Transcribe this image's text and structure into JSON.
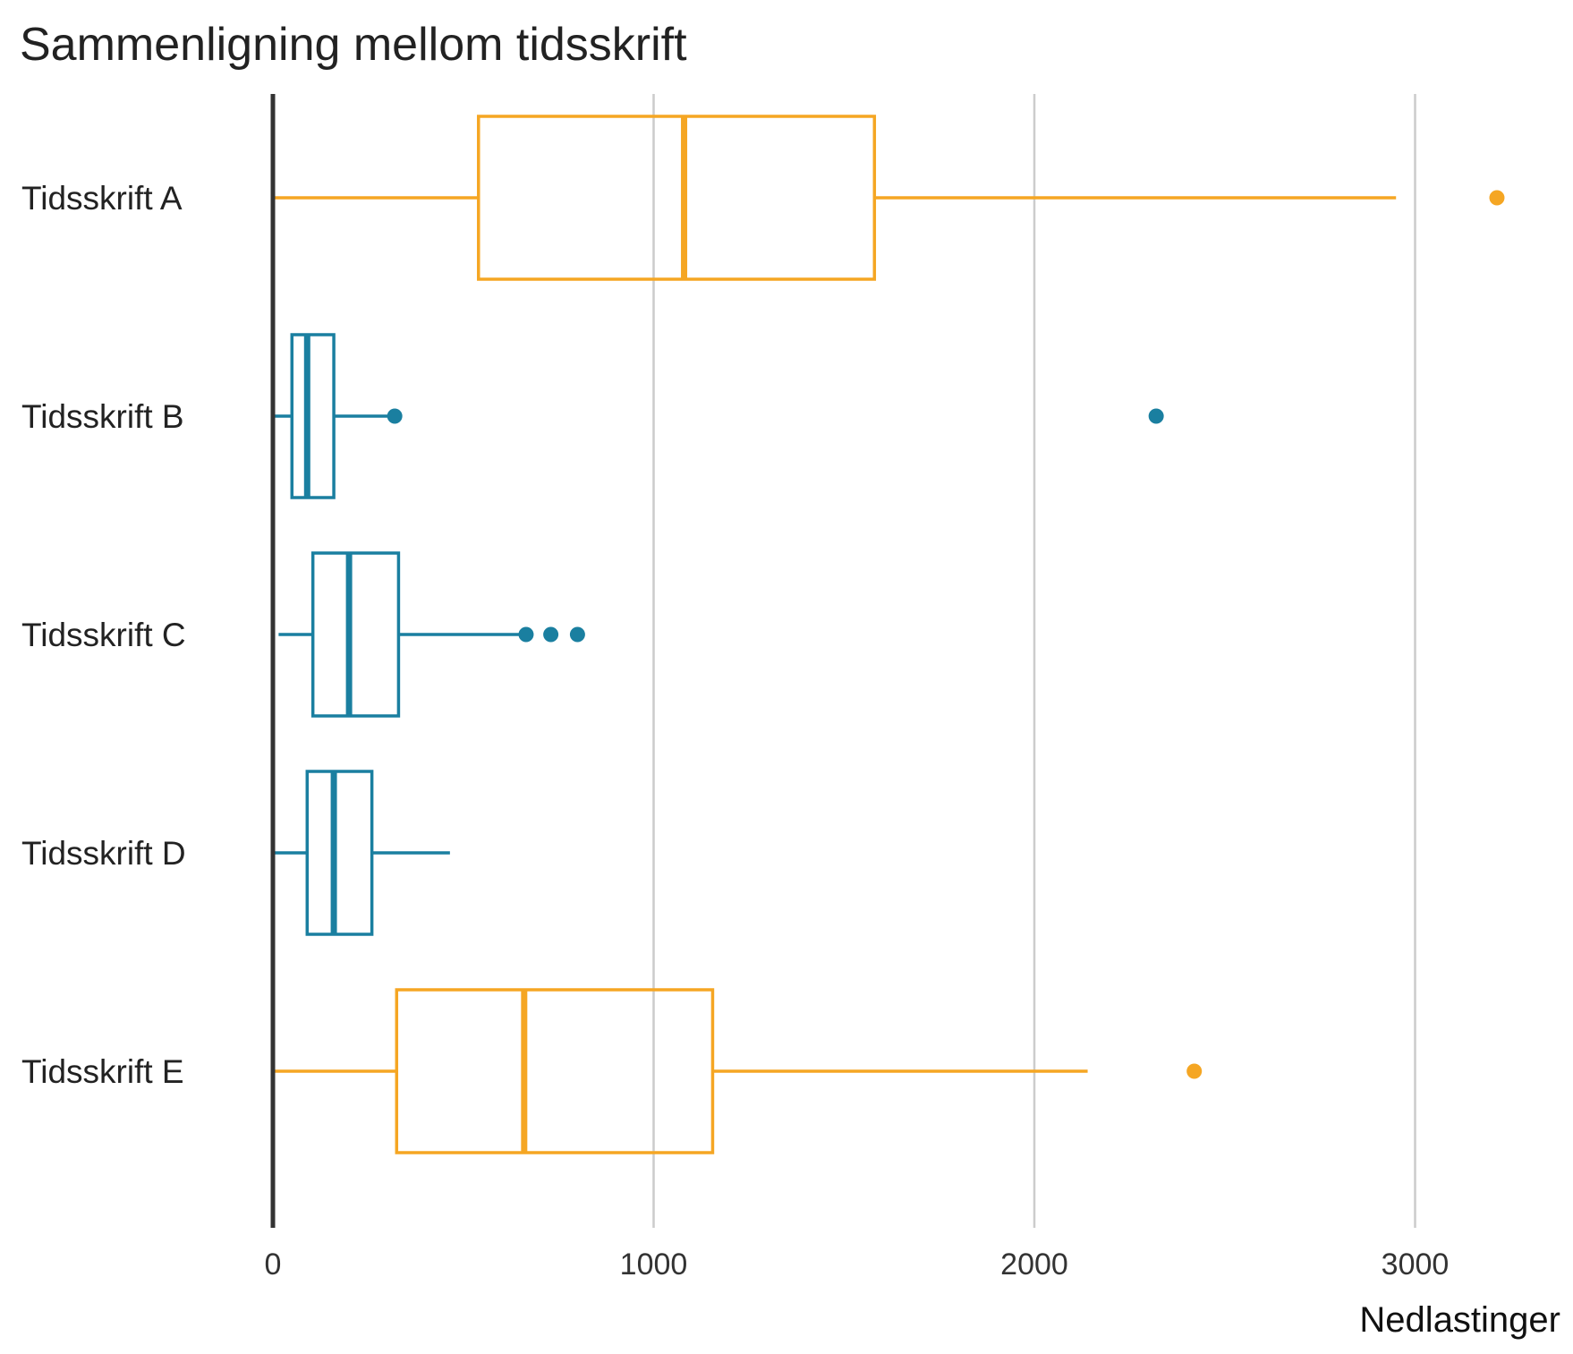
{
  "chart_data": {
    "type": "boxplot",
    "orientation": "horizontal",
    "title": "Sammenligning mellom tidsskrift",
    "xlabel": "Nedlastinger",
    "ylabel": "",
    "xlim": [
      0,
      3400
    ],
    "xticks": [
      0,
      1000,
      2000,
      3000
    ],
    "xtick_labels": [
      "0",
      "1000",
      "2000",
      "3000"
    ],
    "grid": "vertical",
    "colors": {
      "orange": "#F5A623",
      "teal": "#1A7FA0",
      "grid": "#cccccc",
      "axis": "#333333"
    },
    "categories": [
      "Tidsskrift A",
      "Tidsskrift B",
      "Tidsskrift C",
      "Tidsskrift D",
      "Tidsskrift E"
    ],
    "series": [
      {
        "category": "Tidsskrift A",
        "color": "#F5A623",
        "min": 5,
        "q1": 540,
        "median": 1080,
        "q3": 1580,
        "max": 2950,
        "outliers": [
          3215
        ]
      },
      {
        "category": "Tidsskrift B",
        "color": "#1A7FA0",
        "min": 5,
        "q1": 50,
        "median": 90,
        "q3": 160,
        "max": 320,
        "outliers": [
          320,
          2320
        ]
      },
      {
        "category": "Tidsskrift C",
        "color": "#1A7FA0",
        "min": 15,
        "q1": 105,
        "median": 200,
        "q3": 330,
        "max": 665,
        "outliers": [
          665,
          730,
          800
        ]
      },
      {
        "category": "Tidsskrift D",
        "color": "#1A7FA0",
        "min": 5,
        "q1": 90,
        "median": 160,
        "q3": 260,
        "max": 465,
        "outliers": []
      },
      {
        "category": "Tidsskrift E",
        "color": "#F5A623",
        "min": 5,
        "q1": 325,
        "median": 660,
        "q3": 1155,
        "max": 2140,
        "outliers": [
          2420
        ]
      }
    ]
  }
}
